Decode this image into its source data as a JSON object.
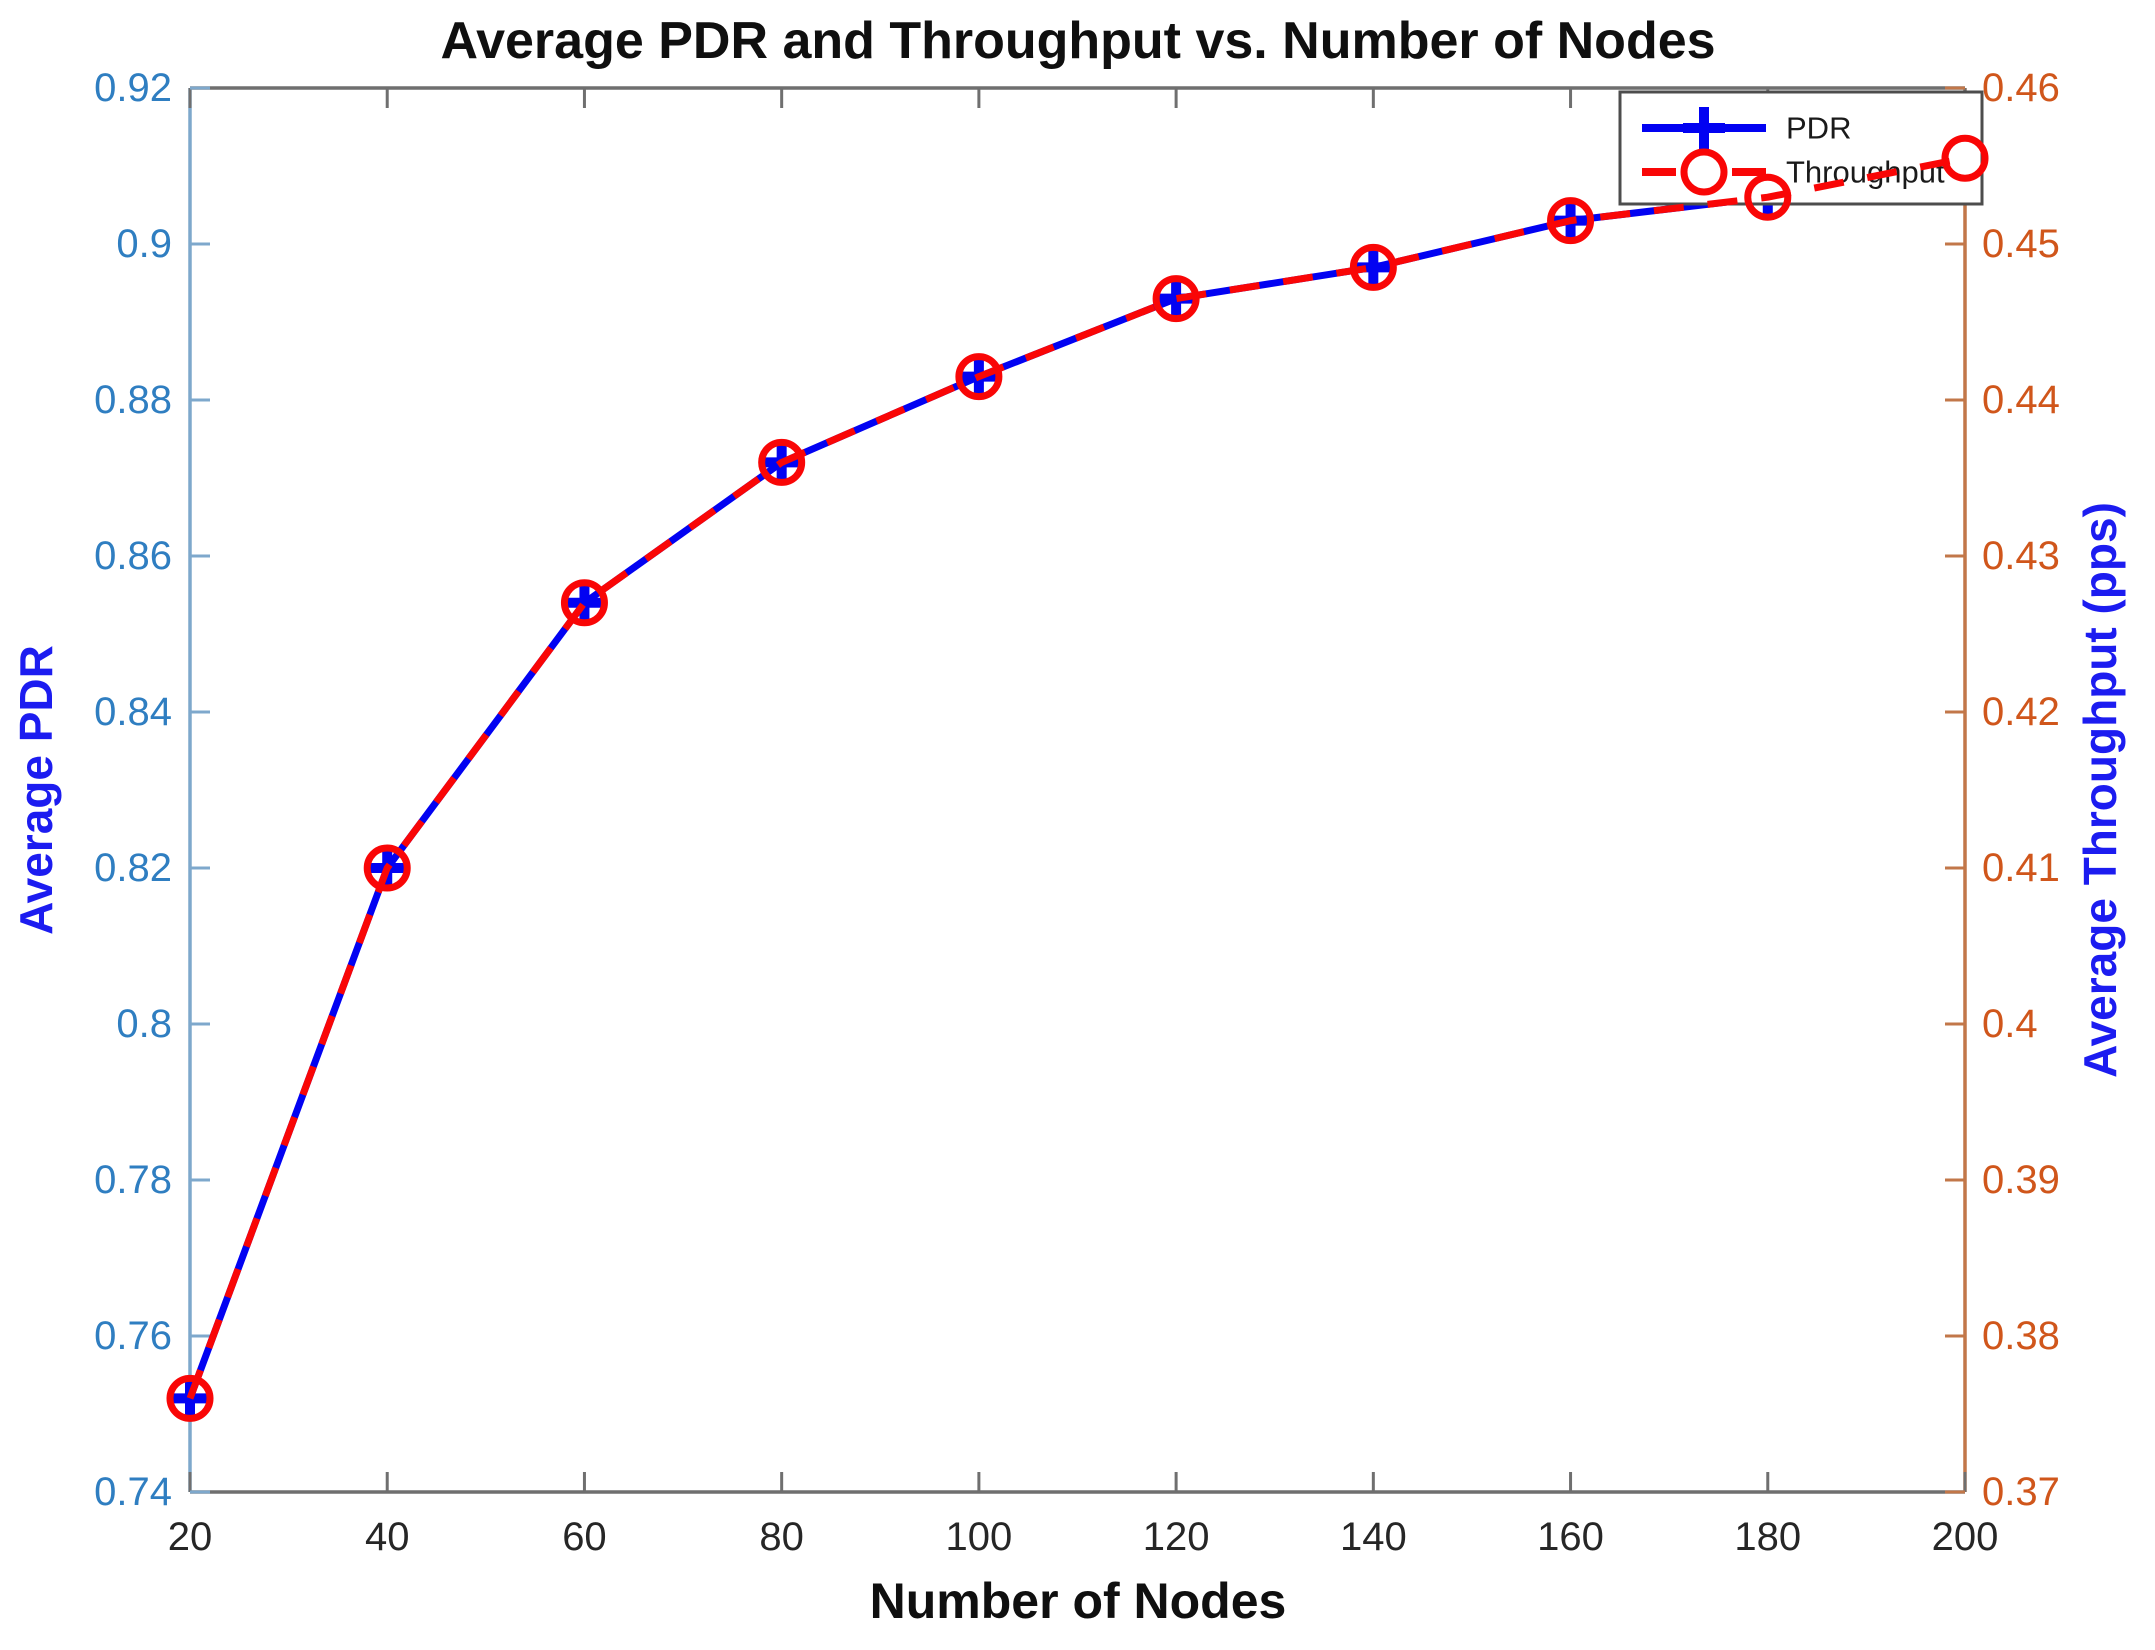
{
  "chart_data": {
    "type": "line",
    "title": "Average PDR and Throughput vs. Number of Nodes",
    "xlabel": "Number of Nodes",
    "ylabel_left": "Average PDR",
    "ylabel_right": "Average Throughput (pps)",
    "x": [
      20,
      40,
      60,
      80,
      100,
      120,
      140,
      160,
      180,
      200
    ],
    "series": [
      {
        "name": "PDR",
        "axis": "left",
        "line": "solid",
        "marker": "plus",
        "values": [
          0.752,
          0.82,
          0.854,
          0.872,
          0.883,
          0.893,
          0.897,
          0.903,
          0.906,
          0.911
        ]
      },
      {
        "name": "Throughput",
        "axis": "right",
        "line": "dashed",
        "marker": "circle",
        "values": [
          0.376,
          0.41,
          0.427,
          0.436,
          0.4415,
          0.4465,
          0.4485,
          0.4515,
          0.453,
          0.4555
        ]
      }
    ],
    "xlim": [
      20,
      200
    ],
    "ylim_left": [
      0.74,
      0.92
    ],
    "ylim_right": [
      0.37,
      0.46
    ],
    "x_ticks": [
      "20",
      "40",
      "60",
      "80",
      "100",
      "120",
      "140",
      "160",
      "180",
      "200"
    ],
    "y_left_ticks": [
      "0.74",
      "0.76",
      "0.78",
      "0.8",
      "0.82",
      "0.84",
      "0.86",
      "0.88",
      "0.9",
      "0.92"
    ],
    "y_right_ticks": [
      "0.37",
      "0.38",
      "0.39",
      "0.4",
      "0.41",
      "0.42",
      "0.43",
      "0.44",
      "0.45",
      "0.46"
    ],
    "legend_position": "top-right",
    "grid": false,
    "colors": {
      "pdr_line": "#0202F2",
      "throughput_line": "#F90606",
      "left_tick_text": "#2F7EC1",
      "left_spine": "#7EA8CC",
      "right_tick_text": "#D0561B",
      "right_spine": "#C27749",
      "axis_label_blue": "#1C1CF0",
      "box_gray": "#6F6F6F",
      "x_tick_text": "#262626",
      "title_color": "#0F0F0F",
      "legend_border": "#4D4D4D",
      "legend_text": "#1A1A1A",
      "background": "#FFFFFF"
    }
  }
}
